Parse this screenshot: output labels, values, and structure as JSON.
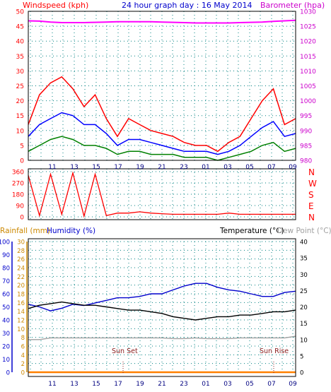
{
  "header": {
    "wind_title": "Windspeed (kph)",
    "date_title": "24 hour graph day : 16 May 2014",
    "baro_title": "Barometer (hpa)"
  },
  "panels": {
    "rain_title": "Rainfall (mm)",
    "humidity_title": "Humidity (%)",
    "temp_title": "Temperature (°C)",
    "dew_title": "Dew Point (°C)",
    "sunset_label": "Sun Set",
    "sunrise_label": "Sun Rise"
  },
  "colors": {
    "wind": "#ff0000",
    "gust_avg": "#0000ff",
    "wind_avg": "#008000",
    "barometer": "#ff00ff",
    "direction": "#ff0000",
    "humidity": "#0000cc",
    "temperature": "#000000",
    "dewpoint": "#a0a0a0",
    "rainfall": "#ff8000",
    "axis_left": "#ff0000",
    "axis_right": "#cc00cc",
    "rain_axis": "#cc8800",
    "hum_axis": "#0000cc",
    "temp_axis": "#000000",
    "grid": "#008080"
  },
  "x_labels": [
    "11",
    "13",
    "15",
    "17",
    "19",
    "21",
    "23",
    "01",
    "03",
    "05",
    "07",
    "09"
  ],
  "chart_data": [
    {
      "type": "line",
      "title": "24 hour graph day : 16 May 2014",
      "ylabel": "Windspeed (kph)",
      "y2label": "Barometer (hpa)",
      "ylim": [
        0,
        50
      ],
      "y2lim": [
        980,
        1030
      ],
      "yticks": [
        0,
        5,
        10,
        15,
        20,
        25,
        30,
        35,
        40,
        45,
        50
      ],
      "y2ticks": [
        980,
        985,
        990,
        995,
        1000,
        1005,
        1010,
        1015,
        1020,
        1025,
        1030
      ],
      "x": [
        0,
        1,
        2,
        3,
        4,
        5,
        6,
        7,
        8,
        9,
        10,
        11,
        12,
        13,
        14,
        15,
        16,
        17,
        18,
        19,
        20,
        21,
        22,
        23,
        24
      ],
      "series": [
        {
          "values": [
            12,
            22,
            26,
            28,
            24,
            18,
            22,
            14,
            8,
            14,
            12,
            10,
            9,
            8,
            6,
            5,
            5,
            3,
            6,
            8,
            14,
            20,
            24,
            12,
            14
          ]
        },
        {
          "values": [
            8,
            12,
            14,
            16,
            15,
            12,
            12,
            9,
            5,
            7,
            7,
            6,
            5,
            4,
            3,
            3,
            3,
            2,
            3,
            5,
            8,
            11,
            13,
            8,
            9
          ]
        },
        {
          "values": [
            3,
            5,
            7,
            8,
            7,
            5,
            5,
            4,
            2,
            3,
            3,
            2,
            2,
            2,
            1,
            1,
            1,
            0,
            1,
            2,
            3,
            5,
            6,
            3,
            4
          ]
        },
        {
          "values": [
            1026.8,
            1026.7,
            1026.4,
            1026.2,
            1026.2,
            1026.2,
            1026.3,
            1026.4,
            1026.5,
            1026.5,
            1026.5,
            1026.5,
            1026.4,
            1026.3,
            1026.2,
            1026.1,
            1026.1,
            1026.1,
            1026.1,
            1026.2,
            1026.3,
            1026.4,
            1026.6,
            1026.8,
            1027.0
          ]
        }
      ]
    },
    {
      "type": "line",
      "ylim": [
        0,
        360
      ],
      "yticks": [
        0,
        90,
        180,
        270,
        360
      ],
      "y2ticks": [
        "N",
        "E",
        "S",
        "W",
        "N"
      ],
      "x": [
        0,
        1,
        2,
        3,
        4,
        5,
        6,
        7,
        8,
        9,
        10,
        11,
        12,
        13,
        14,
        15,
        16,
        17,
        18,
        19,
        20,
        21,
        22,
        23,
        24
      ],
      "series": [
        {
          "values": [
            330,
            10,
            340,
            20,
            350,
            5,
            340,
            10,
            30,
            30,
            40,
            30,
            25,
            20,
            20,
            20,
            20,
            20,
            30,
            20,
            20,
            20,
            20,
            20,
            20
          ]
        }
      ]
    },
    {
      "type": "line",
      "ylabel": "Rainfall (mm)",
      "y2label": "Temperature (°C)",
      "ylim_rain": [
        0,
        30
      ],
      "ylim_humidity": [
        0,
        100
      ],
      "ylim_temp": [
        0,
        40
      ],
      "rain_ticks": [
        0,
        2,
        4,
        6,
        8,
        10,
        12,
        14,
        16,
        18,
        20,
        22,
        24,
        26,
        28,
        30
      ],
      "hum_ticks": [
        0,
        10,
        20,
        30,
        40,
        50,
        60,
        70,
        80,
        90,
        100
      ],
      "temp_ticks": [
        0,
        5,
        10,
        15,
        20,
        25,
        30,
        35,
        40
      ],
      "x": [
        0,
        1,
        2,
        3,
        4,
        5,
        6,
        7,
        8,
        9,
        10,
        11,
        12,
        13,
        14,
        15,
        16,
        17,
        18,
        19,
        20,
        21,
        22,
        23,
        24
      ],
      "series": [
        {
          "values": [
            52,
            50,
            47,
            49,
            52,
            51,
            53,
            55,
            57,
            57,
            58,
            60,
            60,
            63,
            66,
            68,
            68,
            65,
            63,
            62,
            60,
            58,
            58,
            61,
            62
          ]
        },
        {
          "values": [
            19.5,
            20.5,
            21.0,
            21.5,
            21.0,
            20.5,
            20.5,
            20.0,
            19.5,
            19.0,
            19.0,
            18.5,
            18.0,
            17.0,
            16.5,
            16.0,
            16.5,
            17.0,
            17.0,
            17.5,
            17.5,
            18.0,
            18.5,
            18.5,
            19.0
          ]
        },
        {
          "values": [
            10.0,
            10.0,
            10.5,
            10.5,
            10.5,
            10.5,
            10.5,
            10.5,
            10.5,
            10.5,
            10.5,
            10.5,
            10.5,
            10.3,
            10.3,
            10.5,
            10.3,
            10.3,
            10.3,
            10.5,
            10.5,
            10.5,
            10.5,
            10.5,
            11.0
          ]
        },
        {
          "values": [
            0,
            0,
            0,
            0,
            0,
            0,
            0,
            0,
            0,
            0,
            0,
            0,
            0,
            0,
            0,
            0,
            0,
            0,
            0,
            0,
            0,
            0,
            0,
            0,
            0
          ]
        }
      ]
    }
  ]
}
